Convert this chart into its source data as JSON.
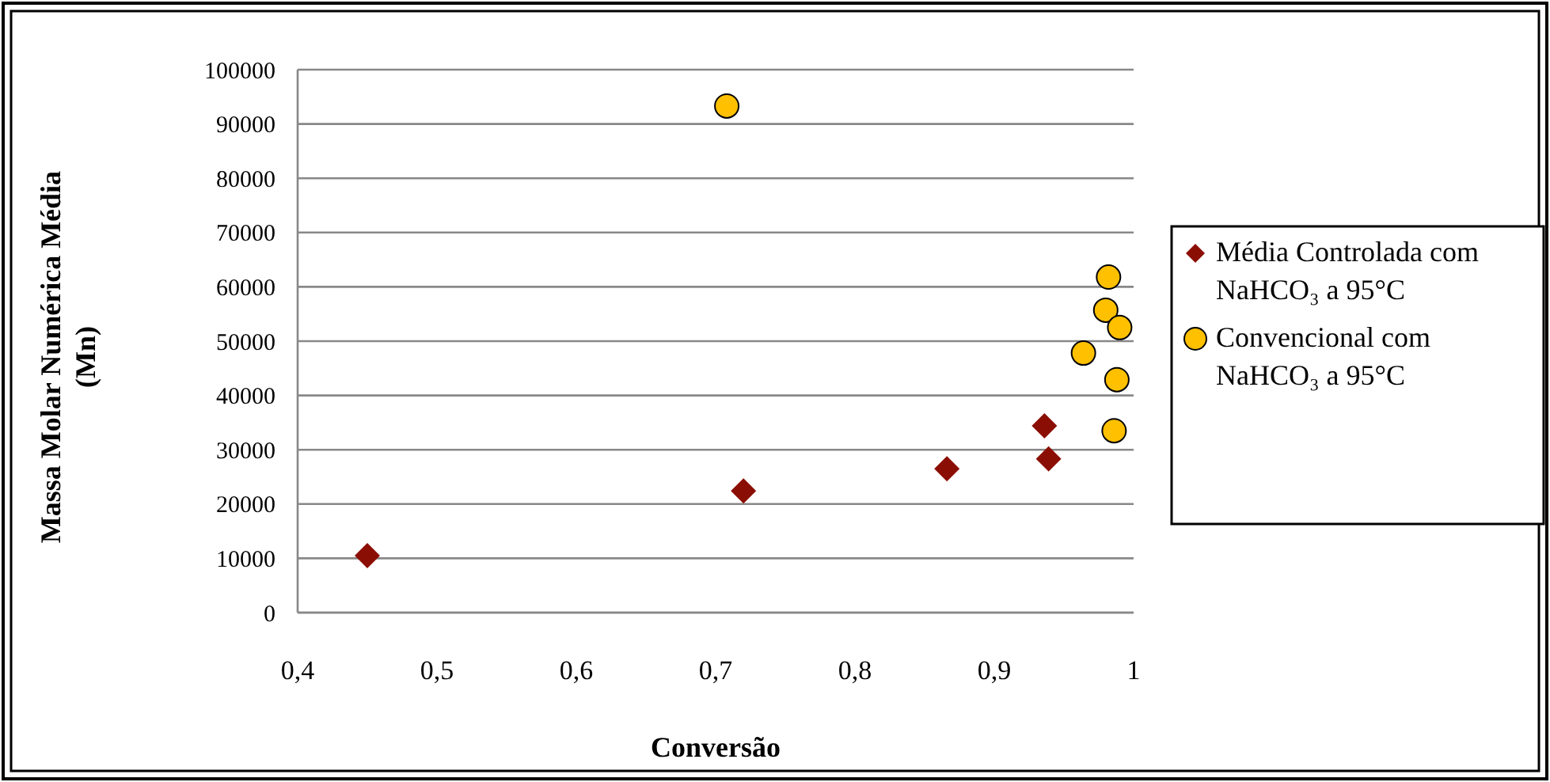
{
  "chart_data": {
    "type": "scatter",
    "xlabel": "Conversão",
    "ylabel": "Massa Molar Numérica Média (Mn)",
    "xlim": [
      0.4,
      1
    ],
    "ylim": [
      0,
      100000
    ],
    "xticks": [
      {
        "value": 0.4,
        "label": "0,4"
      },
      {
        "value": 0.5,
        "label": "0,5"
      },
      {
        "value": 0.6,
        "label": "0,6"
      },
      {
        "value": 0.7,
        "label": "0,7"
      },
      {
        "value": 0.8,
        "label": "0,8"
      },
      {
        "value": 0.9,
        "label": "0,9"
      },
      1
    ],
    "yticks": [
      0,
      10000,
      20000,
      30000,
      40000,
      50000,
      60000,
      70000,
      80000,
      90000,
      100000
    ],
    "grid": "y",
    "legend": "right",
    "series": [
      {
        "name": "Média Controlada com NaHCO₃ a 95°C",
        "color": "#8b0e04",
        "marker": "diamond",
        "x": [
          0.45,
          0.72,
          0.866,
          0.936,
          0.939
        ],
        "values": [
          10500,
          22400,
          26500,
          34400,
          28300
        ]
      },
      {
        "name": "Convencional com NaHCO₃ a 95°C",
        "color": "#ffc000",
        "marker": "circle",
        "x": [
          0.708,
          0.982,
          0.98,
          0.99,
          0.964,
          0.988,
          0.986
        ],
        "values": [
          93300,
          61800,
          55700,
          52500,
          47800,
          42900,
          33500
        ]
      }
    ]
  }
}
